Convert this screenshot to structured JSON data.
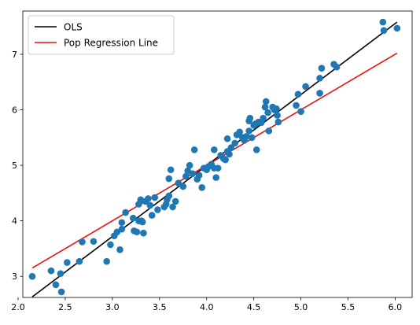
{
  "chart_data": {
    "type": "scatter",
    "xlim": [
      2.05,
      6.18
    ],
    "ylim": [
      2.62,
      7.78
    ],
    "x_ticks": [
      2.0,
      2.5,
      3.0,
      3.5,
      4.0,
      4.5,
      5.0,
      5.5,
      6.0
    ],
    "y_ticks": [
      3,
      4,
      5,
      6,
      7
    ],
    "grid": false,
    "legend_position": "top-left",
    "scatter_color": "#1f77b4",
    "points": [
      [
        2.15,
        3.0
      ],
      [
        2.35,
        3.1
      ],
      [
        2.4,
        2.85
      ],
      [
        2.45,
        3.05
      ],
      [
        2.46,
        2.72
      ],
      [
        2.52,
        3.25
      ],
      [
        2.65,
        3.27
      ],
      [
        2.68,
        3.62
      ],
      [
        2.8,
        3.63
      ],
      [
        2.94,
        3.27
      ],
      [
        2.98,
        3.57
      ],
      [
        3.02,
        3.73
      ],
      [
        3.05,
        3.8
      ],
      [
        3.08,
        3.48
      ],
      [
        3.1,
        3.85
      ],
      [
        3.1,
        3.97
      ],
      [
        3.14,
        4.15
      ],
      [
        3.22,
        4.05
      ],
      [
        3.23,
        3.82
      ],
      [
        3.26,
        3.8
      ],
      [
        3.28,
        4.0
      ],
      [
        3.28,
        4.3
      ],
      [
        3.3,
        4.38
      ],
      [
        3.31,
        4.0
      ],
      [
        3.32,
        3.98
      ],
      [
        3.33,
        3.78
      ],
      [
        3.35,
        4.35
      ],
      [
        3.38,
        4.4
      ],
      [
        3.4,
        4.28
      ],
      [
        3.42,
        4.1
      ],
      [
        3.45,
        4.42
      ],
      [
        3.48,
        4.2
      ],
      [
        3.55,
        4.25
      ],
      [
        3.57,
        4.3
      ],
      [
        3.58,
        4.38
      ],
      [
        3.6,
        4.45
      ],
      [
        3.6,
        4.76
      ],
      [
        3.62,
        4.92
      ],
      [
        3.64,
        4.25
      ],
      [
        3.67,
        4.35
      ],
      [
        3.7,
        4.68
      ],
      [
        3.75,
        4.62
      ],
      [
        3.78,
        4.8
      ],
      [
        3.8,
        4.9
      ],
      [
        3.82,
        5.0
      ],
      [
        3.85,
        4.85
      ],
      [
        3.87,
        5.28
      ],
      [
        3.9,
        4.75
      ],
      [
        3.92,
        4.82
      ],
      [
        3.95,
        4.6
      ],
      [
        3.97,
        4.95
      ],
      [
        4.0,
        4.92
      ],
      [
        4.02,
        4.98
      ],
      [
        4.05,
        5.02
      ],
      [
        4.08,
        4.95
      ],
      [
        4.08,
        5.28
      ],
      [
        4.1,
        4.78
      ],
      [
        4.12,
        4.95
      ],
      [
        4.15,
        5.18
      ],
      [
        4.18,
        5.12
      ],
      [
        4.2,
        5.1
      ],
      [
        4.22,
        5.25
      ],
      [
        4.22,
        5.48
      ],
      [
        4.24,
        5.2
      ],
      [
        4.26,
        5.32
      ],
      [
        4.3,
        5.4
      ],
      [
        4.32,
        5.55
      ],
      [
        4.35,
        5.6
      ],
      [
        4.38,
        5.5
      ],
      [
        4.4,
        5.45
      ],
      [
        4.42,
        5.52
      ],
      [
        4.45,
        5.62
      ],
      [
        4.45,
        5.8
      ],
      [
        4.46,
        5.85
      ],
      [
        4.48,
        5.5
      ],
      [
        4.5,
        5.72
      ],
      [
        4.52,
        5.75
      ],
      [
        4.53,
        5.28
      ],
      [
        4.55,
        5.78
      ],
      [
        4.58,
        5.77
      ],
      [
        4.6,
        5.85
      ],
      [
        4.62,
        6.05
      ],
      [
        4.63,
        6.15
      ],
      [
        4.65,
        5.95
      ],
      [
        4.66,
        5.62
      ],
      [
        4.7,
        6.05
      ],
      [
        4.72,
        6.0
      ],
      [
        4.74,
        6.02
      ],
      [
        4.75,
        5.9
      ],
      [
        4.76,
        5.78
      ],
      [
        4.95,
        6.08
      ],
      [
        4.97,
        6.28
      ],
      [
        5.0,
        5.97
      ],
      [
        5.05,
        6.42
      ],
      [
        5.2,
        6.3
      ],
      [
        5.2,
        6.57
      ],
      [
        5.22,
        6.75
      ],
      [
        5.35,
        6.82
      ],
      [
        5.38,
        6.77
      ],
      [
        5.87,
        7.58
      ],
      [
        5.88,
        7.43
      ],
      [
        6.02,
        7.47
      ]
    ],
    "series": [
      {
        "name": "OLS",
        "color": "#000000",
        "x": [
          2.15,
          6.02
        ],
        "y": [
          2.63,
          7.58
        ]
      },
      {
        "name": "Pop Regression Line",
        "color": "#ee1111",
        "x": [
          2.15,
          6.02
        ],
        "y": [
          3.15,
          7.02
        ]
      }
    ]
  }
}
